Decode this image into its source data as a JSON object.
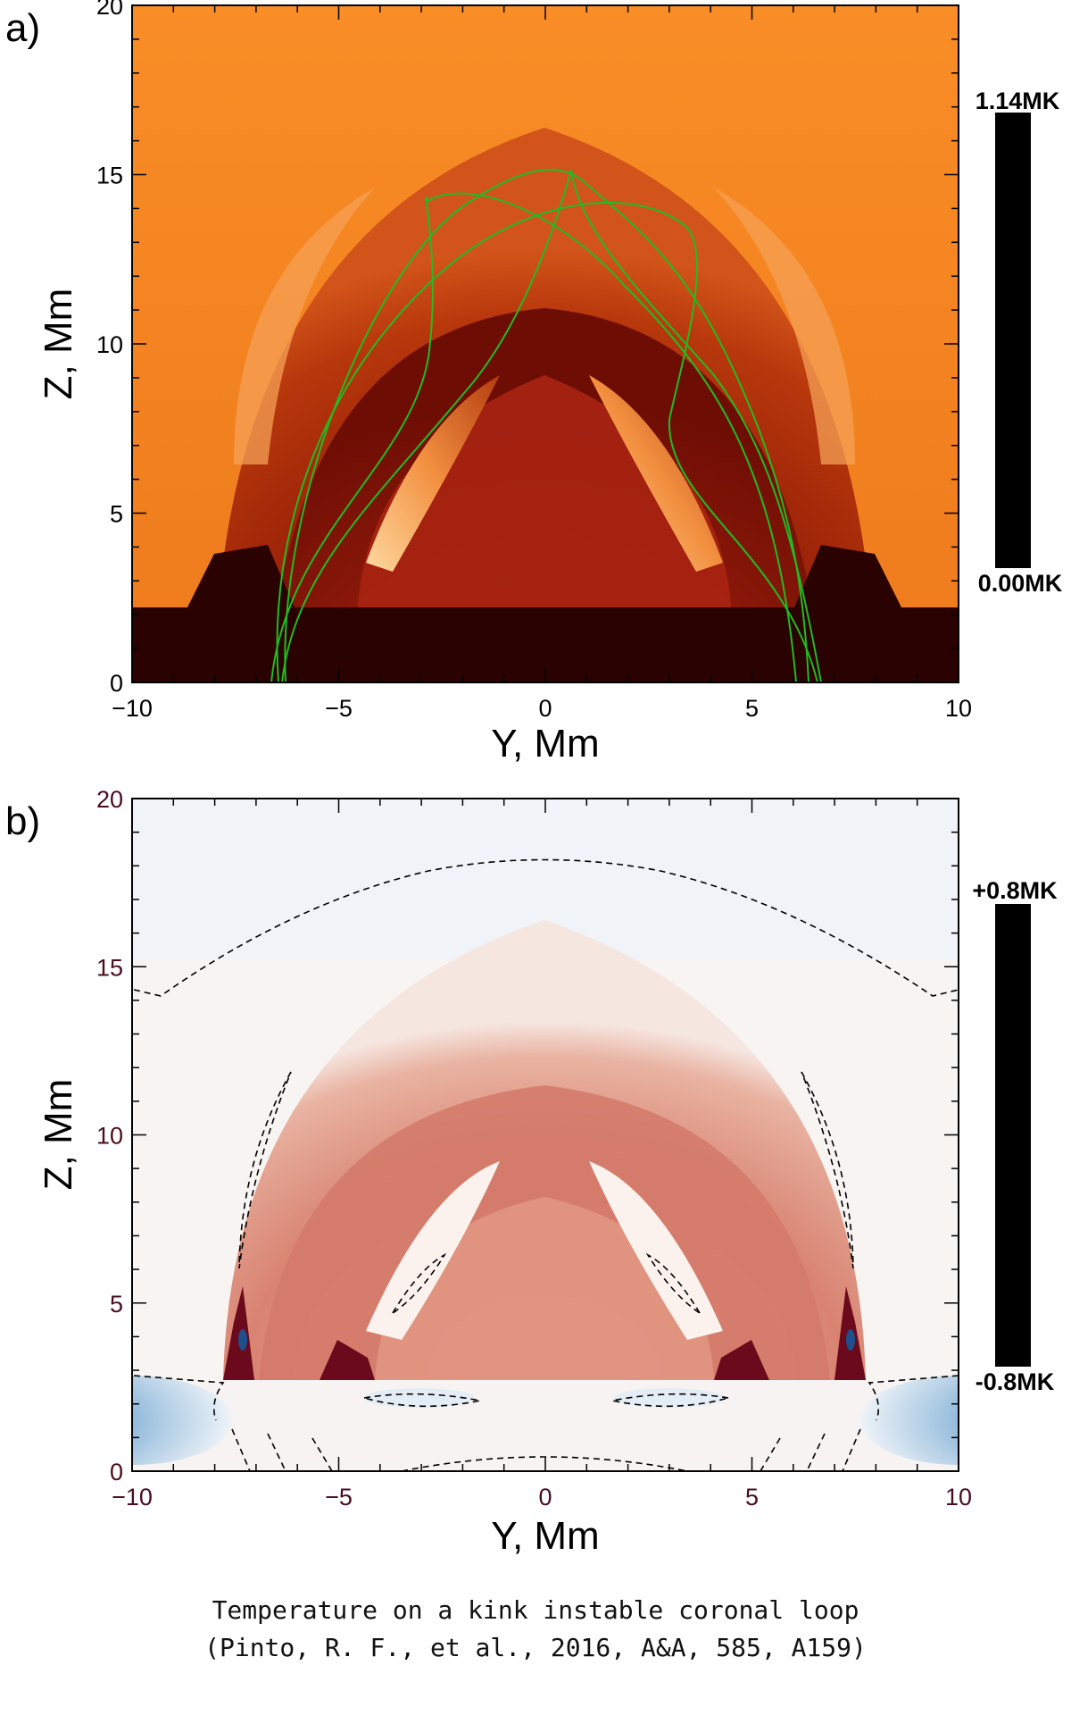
{
  "chart_data": [
    {
      "type": "heatmap",
      "panel_label": "a)",
      "title": "",
      "xlabel": "Y, Mm",
      "ylabel": "Z, Mm",
      "xlim": [
        -10,
        10
      ],
      "ylim": [
        0,
        20
      ],
      "x_ticks": [
        -10,
        -5,
        0,
        5,
        10
      ],
      "y_ticks": [
        0,
        5,
        10,
        15,
        20
      ],
      "x_tick_labels": [
        "−10",
        "−5",
        "0",
        "5",
        "10"
      ],
      "y_tick_labels": [
        "0",
        "5",
        "10",
        "15",
        "20"
      ],
      "colorbar": {
        "max_label": "1.14MK",
        "min_label": "0.00MK",
        "range_MK": [
          0.0,
          1.14
        ]
      },
      "colormap": [
        "#1e0000",
        "#7a0d00",
        "#c23a0c",
        "#f07a1e",
        "#ffb060"
      ],
      "field_line_color": "#22bb22",
      "field_line_count": 4
    },
    {
      "type": "heatmap",
      "panel_label": "b)",
      "title": "",
      "xlabel": "Y, Mm",
      "ylabel": "Z, Mm",
      "xlim": [
        -10,
        10
      ],
      "ylim": [
        0,
        20
      ],
      "x_ticks": [
        -10,
        -5,
        0,
        5,
        10
      ],
      "y_ticks": [
        0,
        5,
        10,
        15,
        20
      ],
      "x_tick_labels": [
        "−10",
        "−5",
        "0",
        "5",
        "10"
      ],
      "y_tick_labels": [
        "0",
        "5",
        "10",
        "15",
        "20"
      ],
      "colorbar": {
        "max_label": "+0.8MK",
        "min_label": "-0.8MK",
        "range_MK": [
          -0.8,
          0.8
        ]
      },
      "colormap": [
        "#2f6fb0",
        "#eef3f8",
        "#f7f4f2",
        "#d9685a",
        "#5a0012"
      ],
      "zero_contour_style": "dashed"
    }
  ],
  "caption": {
    "line1": "Temperature on a kink instable coronal loop",
    "line2": "(Pinto, R. F., et al., 2016, A&A, 585, A159)"
  },
  "colors": {
    "axis": "#000000",
    "tick_label_a": "#000000",
    "tick_label_b": "#4a0d1d"
  }
}
